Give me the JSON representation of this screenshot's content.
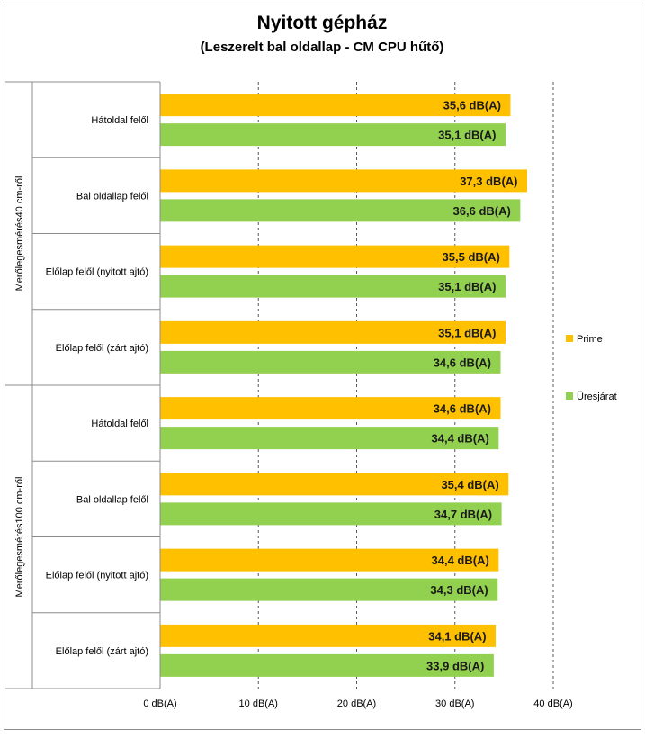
{
  "chart_data": {
    "type": "bar",
    "orientation": "horizontal",
    "title": "Nyitott gépház",
    "subtitle": "(Leszerelt bal oldallap - CM CPU hűtő)",
    "xlim": [
      0,
      40
    ],
    "x_ticks": [
      0,
      10,
      20,
      30,
      40
    ],
    "tick_labels": [
      "0 dB(A)",
      "10 dB(A)",
      "20 dB(A)",
      "30 dB(A)",
      "40 dB(A)"
    ],
    "unit_suffix": " dB(A)",
    "grid": "vertical dashed",
    "legend_position": "right",
    "groups": [
      {
        "label": "Merőlegesmérés40 cm-ről",
        "categories": [
          "Hátoldal felől",
          "Bal oldallap felől",
          "Előlap felől (nyitott ajtó)",
          "Előlap felől (zárt ajtó)"
        ]
      },
      {
        "label": "Merőlegesmérés100 cm-ről",
        "categories": [
          "Hátoldal felől",
          "Bal oldallap felől",
          "Előlap felől (nyitott ajtó)",
          "Előlap felől (zárt ajtó)"
        ]
      }
    ],
    "series": [
      {
        "name": "Prime",
        "color": "#FFC000",
        "values": [
          35.6,
          37.3,
          35.5,
          35.1,
          34.6,
          35.4,
          34.4,
          34.1
        ]
      },
      {
        "name": "Üresjárat",
        "color": "#92D050",
        "values": [
          35.1,
          36.6,
          35.1,
          34.6,
          34.4,
          34.7,
          34.3,
          33.9
        ]
      }
    ]
  }
}
